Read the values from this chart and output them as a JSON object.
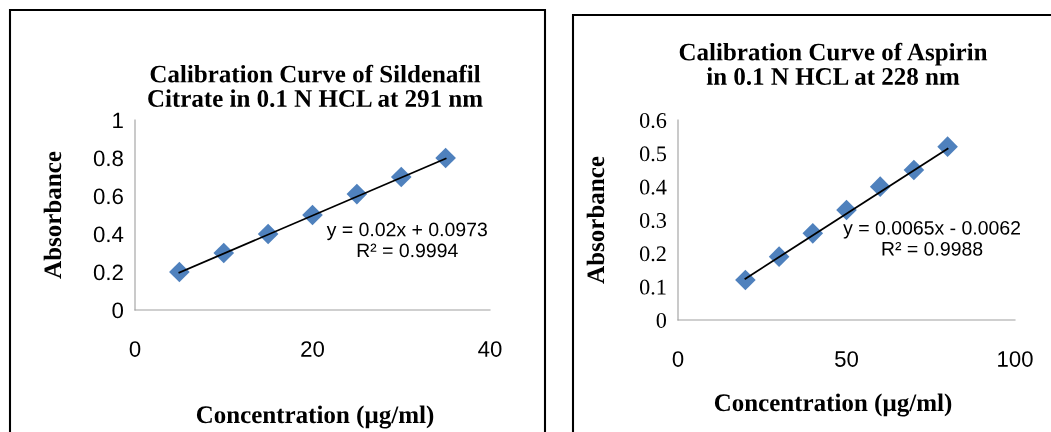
{
  "chart_data": [
    {
      "type": "scatter",
      "title": "Calibration Curve of Sildenafil\nCitrate in 0.1 N HCL at 291 nm",
      "xlabel": "Concentration (µg/ml)",
      "ylabel": "Absorbance",
      "x": [
        5,
        10,
        15,
        20,
        25,
        30,
        35
      ],
      "grid": false,
      "legend": false,
      "series": [
        {
          "color": "#4f81bd",
          "marker": "diamond",
          "values": [
            0.2,
            0.3,
            0.4,
            0.5,
            0.61,
            0.7,
            0.8
          ]
        },
        {
          "type": "line",
          "color": "#000000",
          "x": [
            5,
            35
          ],
          "values": [
            0.197,
            0.797
          ],
          "marker": "none",
          "line_style": "solid"
        }
      ],
      "xlim": [
        0,
        40
      ],
      "xticks": [
        0,
        20,
        40
      ],
      "ylim": [
        0,
        1
      ],
      "yticks": [
        0,
        0.2,
        0.4,
        0.6,
        0.8,
        1
      ],
      "annotations": [
        "y = 0.02x + 0.0973",
        "R² = 0.9994"
      ]
    },
    {
      "type": "scatter",
      "title": "Calibration Curve of Aspirin\nin 0.1 N HCL at 228 nm",
      "xlabel": "Concentration (µg/ml)",
      "ylabel": "Absorbance",
      "x": [
        20,
        30,
        40,
        50,
        60,
        70,
        80
      ],
      "grid": false,
      "legend": false,
      "series": [
        {
          "color": "#4f81bd",
          "marker": "diamond",
          "values": [
            0.12,
            0.19,
            0.26,
            0.33,
            0.4,
            0.45,
            0.52
          ]
        },
        {
          "type": "line",
          "color": "#000000",
          "x": [
            20,
            80
          ],
          "values": [
            0.124,
            0.514
          ],
          "marker": "none",
          "line_style": "solid"
        }
      ],
      "xlim": [
        0,
        100
      ],
      "xticks": [
        0,
        50,
        100
      ],
      "ylim": [
        0,
        0.6
      ],
      "yticks": [
        0,
        0.1,
        0.2,
        0.3,
        0.4,
        0.5,
        0.6
      ],
      "annotations": [
        "y = 0.0065x - 0.0062",
        "R² = 0.9988"
      ]
    }
  ]
}
